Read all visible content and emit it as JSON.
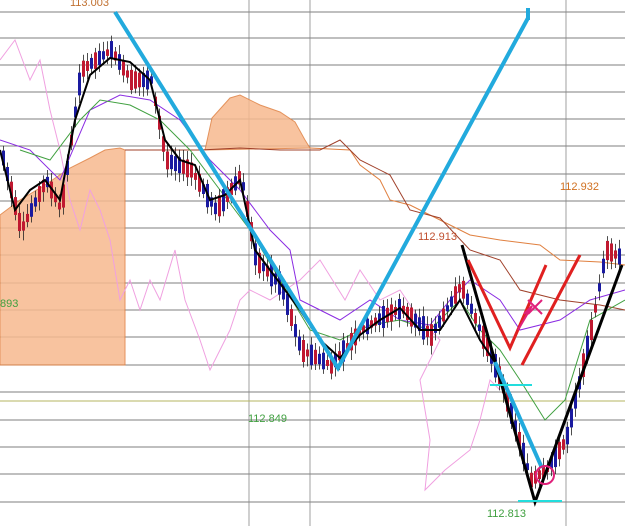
{
  "annotations": {
    "high_left": "113.003",
    "left_edge": "893",
    "low_middle": "112.849",
    "peak_middle": "112.913",
    "peak_right": "112.932",
    "low_right": "112.813"
  }
}
